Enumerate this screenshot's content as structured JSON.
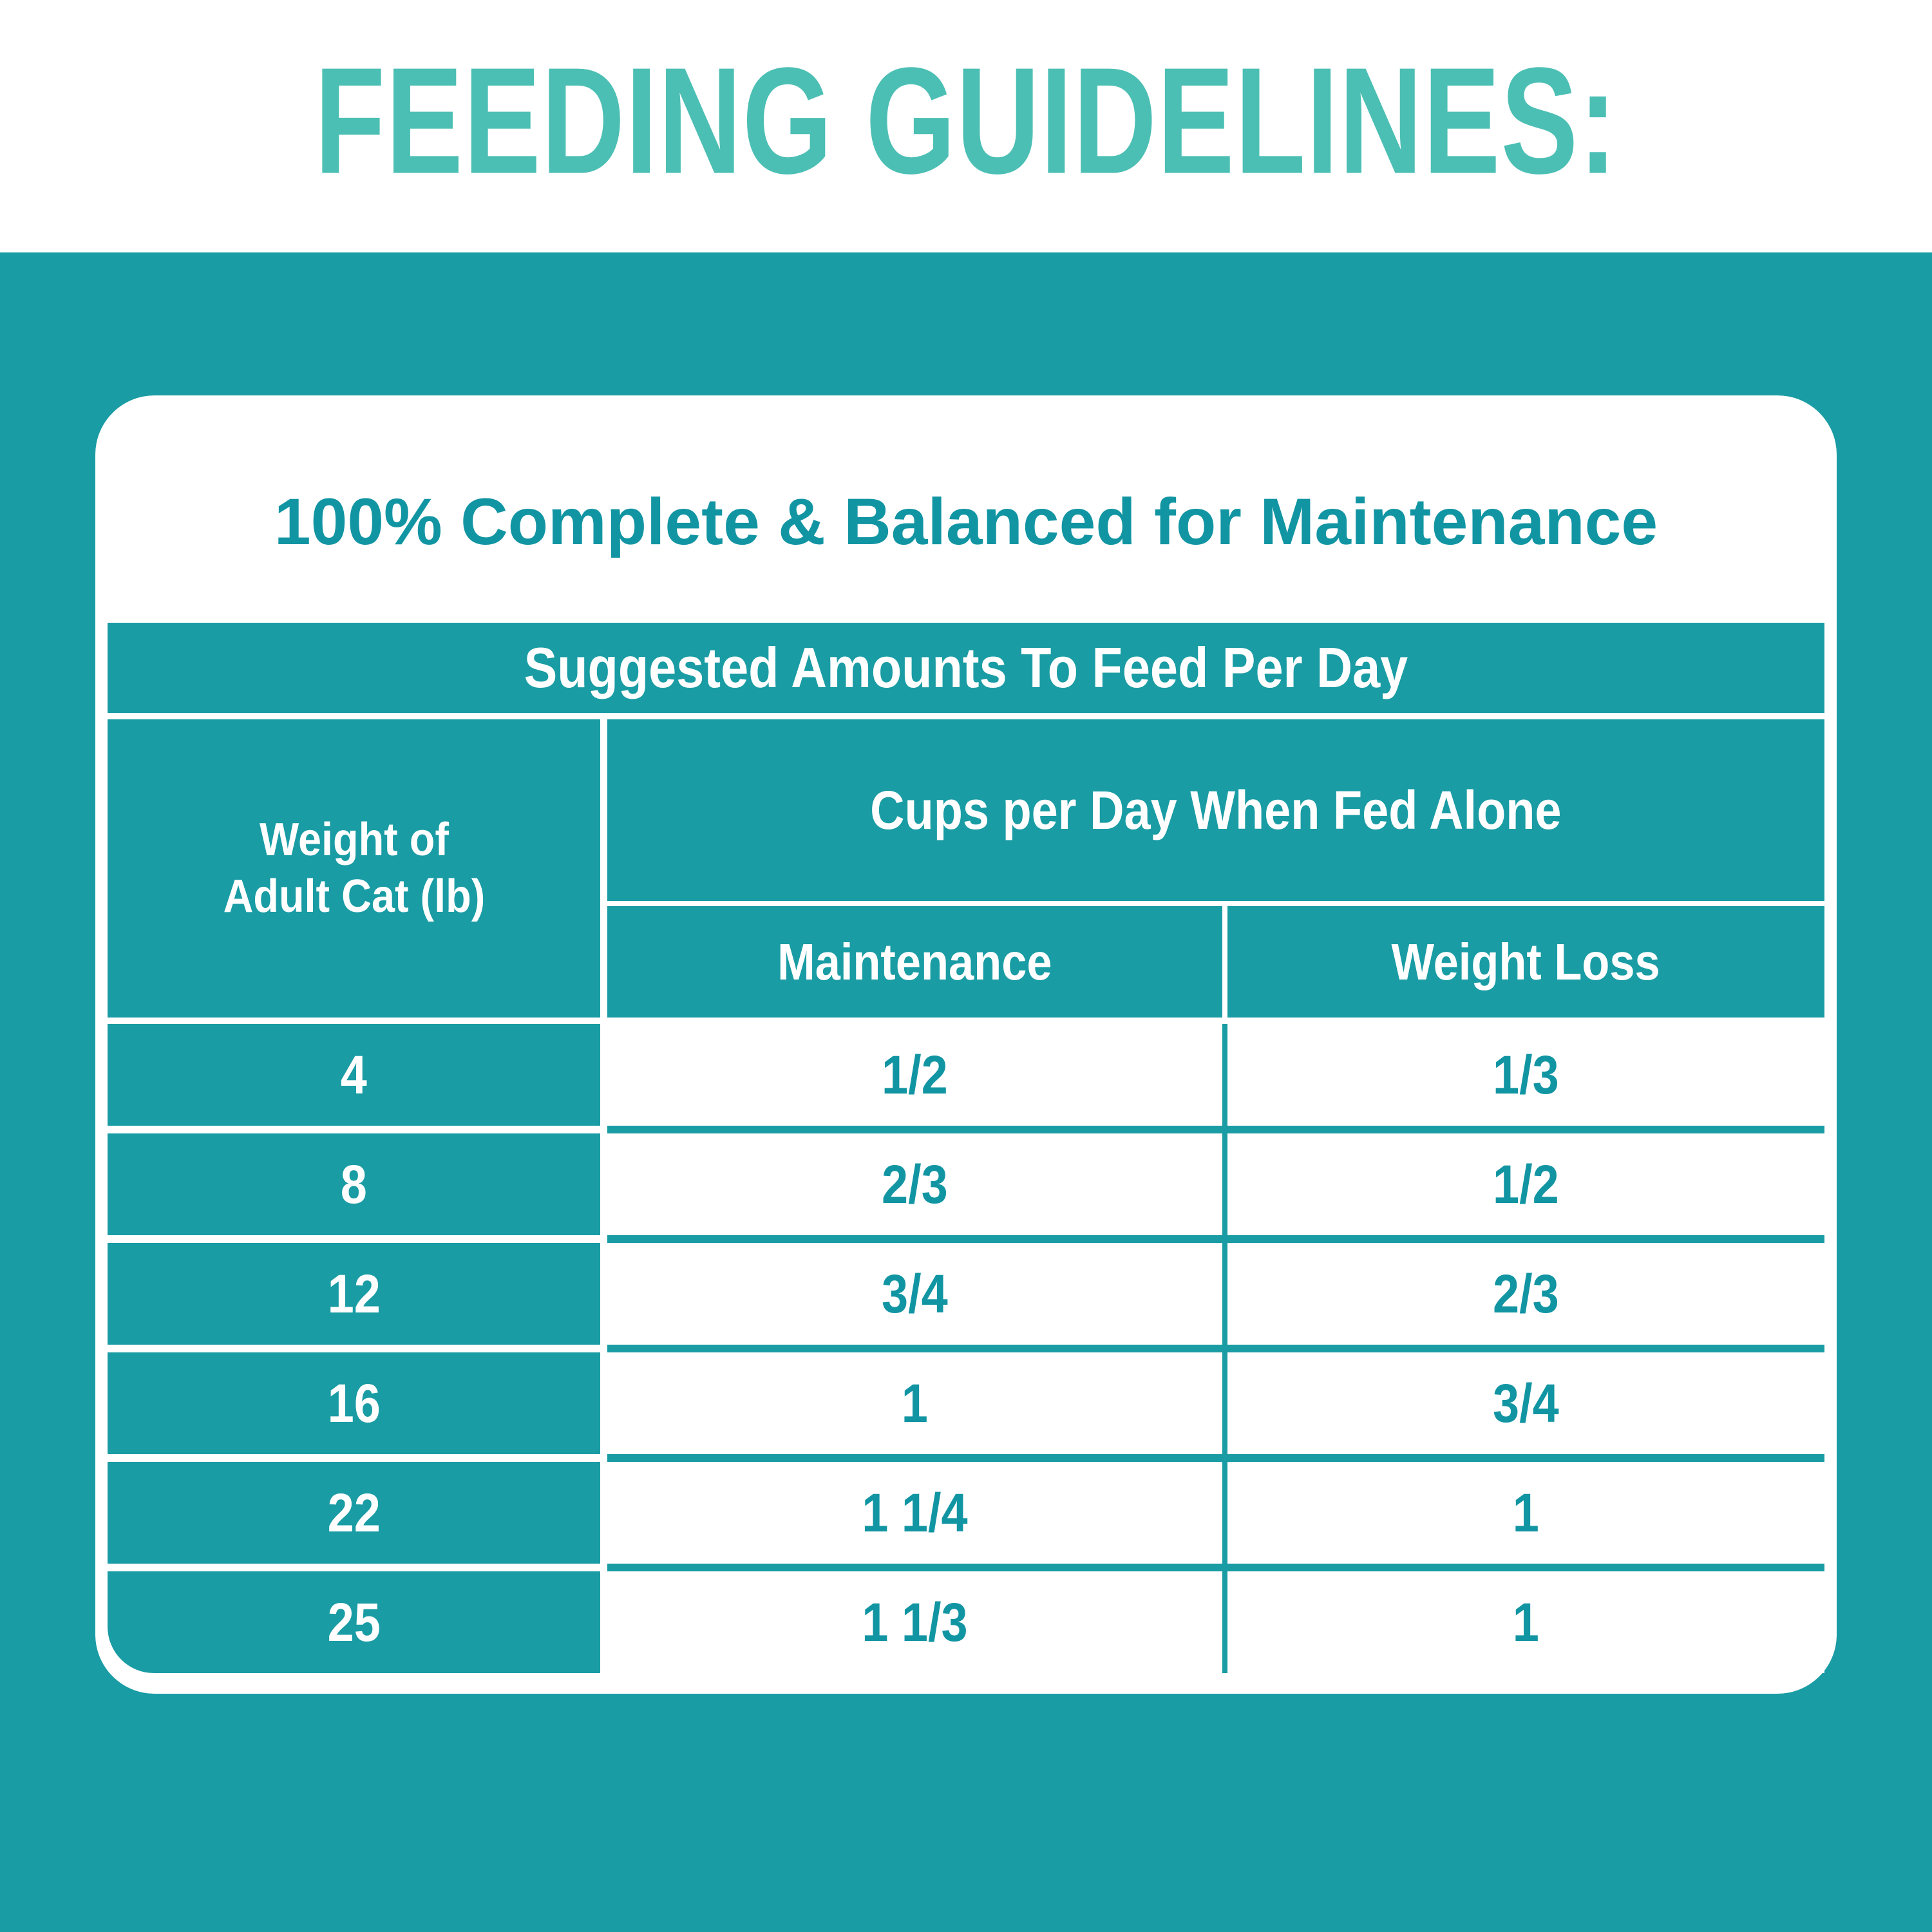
{
  "page": {
    "title": "FEEDING GUIDELINES:"
  },
  "card": {
    "title": "100% Complete & Balanced for Maintenance",
    "table": {
      "header": "Suggested Amounts To Feed Per Day",
      "weight_header_line1": "Weight of",
      "weight_header_line2": "Adult Cat (lb)",
      "group_header": "Cups per Day When Fed Alone",
      "col_maintenance": "Maintenance",
      "col_weight_loss": "Weight Loss",
      "rows": [
        {
          "weight": "4",
          "maintenance": "1/2",
          "weight_loss": "1/3"
        },
        {
          "weight": "8",
          "maintenance": "2/3",
          "weight_loss": "1/2"
        },
        {
          "weight": "12",
          "maintenance": "3/4",
          "weight_loss": "2/3"
        },
        {
          "weight": "16",
          "maintenance": "1",
          "weight_loss": "3/4"
        },
        {
          "weight": "22",
          "maintenance": "1 1/4",
          "weight_loss": "1"
        },
        {
          "weight": "25",
          "maintenance": "1 1/3",
          "weight_loss": "1"
        }
      ]
    }
  },
  "colors": {
    "page_title": "#4CBFB4",
    "teal_background": "#199CA4",
    "card_background": "#FFFFFF",
    "accent_text": "#1295A3",
    "header_text": "#FFFFFF"
  }
}
